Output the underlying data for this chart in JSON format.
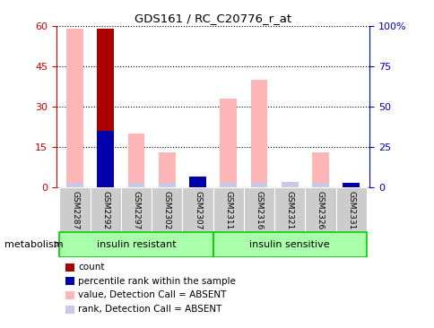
{
  "title": "GDS161 / RC_C20776_r_at",
  "samples": [
    "GSM2287",
    "GSM2292",
    "GSM2297",
    "GSM2302",
    "GSM2307",
    "GSM2311",
    "GSM2316",
    "GSM2321",
    "GSM2326",
    "GSM2331"
  ],
  "count_values": [
    0,
    59,
    0,
    0,
    2,
    0,
    0,
    0,
    0,
    0
  ],
  "pct_rank_values": [
    0,
    21,
    0,
    0,
    4,
    0,
    0,
    0,
    0,
    1.5
  ],
  "value_absent": [
    59,
    0,
    20,
    13,
    2,
    33,
    40,
    0,
    13,
    0
  ],
  "rank_absent": [
    1.5,
    1.5,
    1.5,
    1.5,
    0,
    1.5,
    1.5,
    2,
    1.5,
    0
  ],
  "ylim": [
    0,
    60
  ],
  "yticks": [
    0,
    15,
    30,
    45,
    60
  ],
  "y2ticks": [
    0,
    25,
    50,
    75,
    100
  ],
  "y2labels": [
    "0",
    "25",
    "50",
    "75",
    "100%"
  ],
  "color_count": "#AA0000",
  "color_pct_rank": "#0000AA",
  "color_value_absent": "#FFB6B6",
  "color_rank_absent": "#C8C8E8",
  "group1_label": "insulin resistant",
  "group2_label": "insulin sensitive",
  "group1_indices": [
    0,
    1,
    2,
    3,
    4
  ],
  "group2_indices": [
    5,
    6,
    7,
    8,
    9
  ],
  "annotation_label": "metabolism",
  "legend_items": [
    {
      "color": "#AA0000",
      "label": "count"
    },
    {
      "color": "#0000AA",
      "label": "percentile rank within the sample"
    },
    {
      "color": "#FFB6B6",
      "label": "value, Detection Call = ABSENT"
    },
    {
      "color": "#C8C8E8",
      "label": "rank, Detection Call = ABSENT"
    }
  ],
  "bar_width": 0.55,
  "tick_label_color_left": "#CC0000",
  "tick_label_color_right": "#0000CC",
  "sample_area_color": "#CCCCCC",
  "group_box_color_light": "#AAFFAA",
  "group_box_color_dark": "#00CC00"
}
